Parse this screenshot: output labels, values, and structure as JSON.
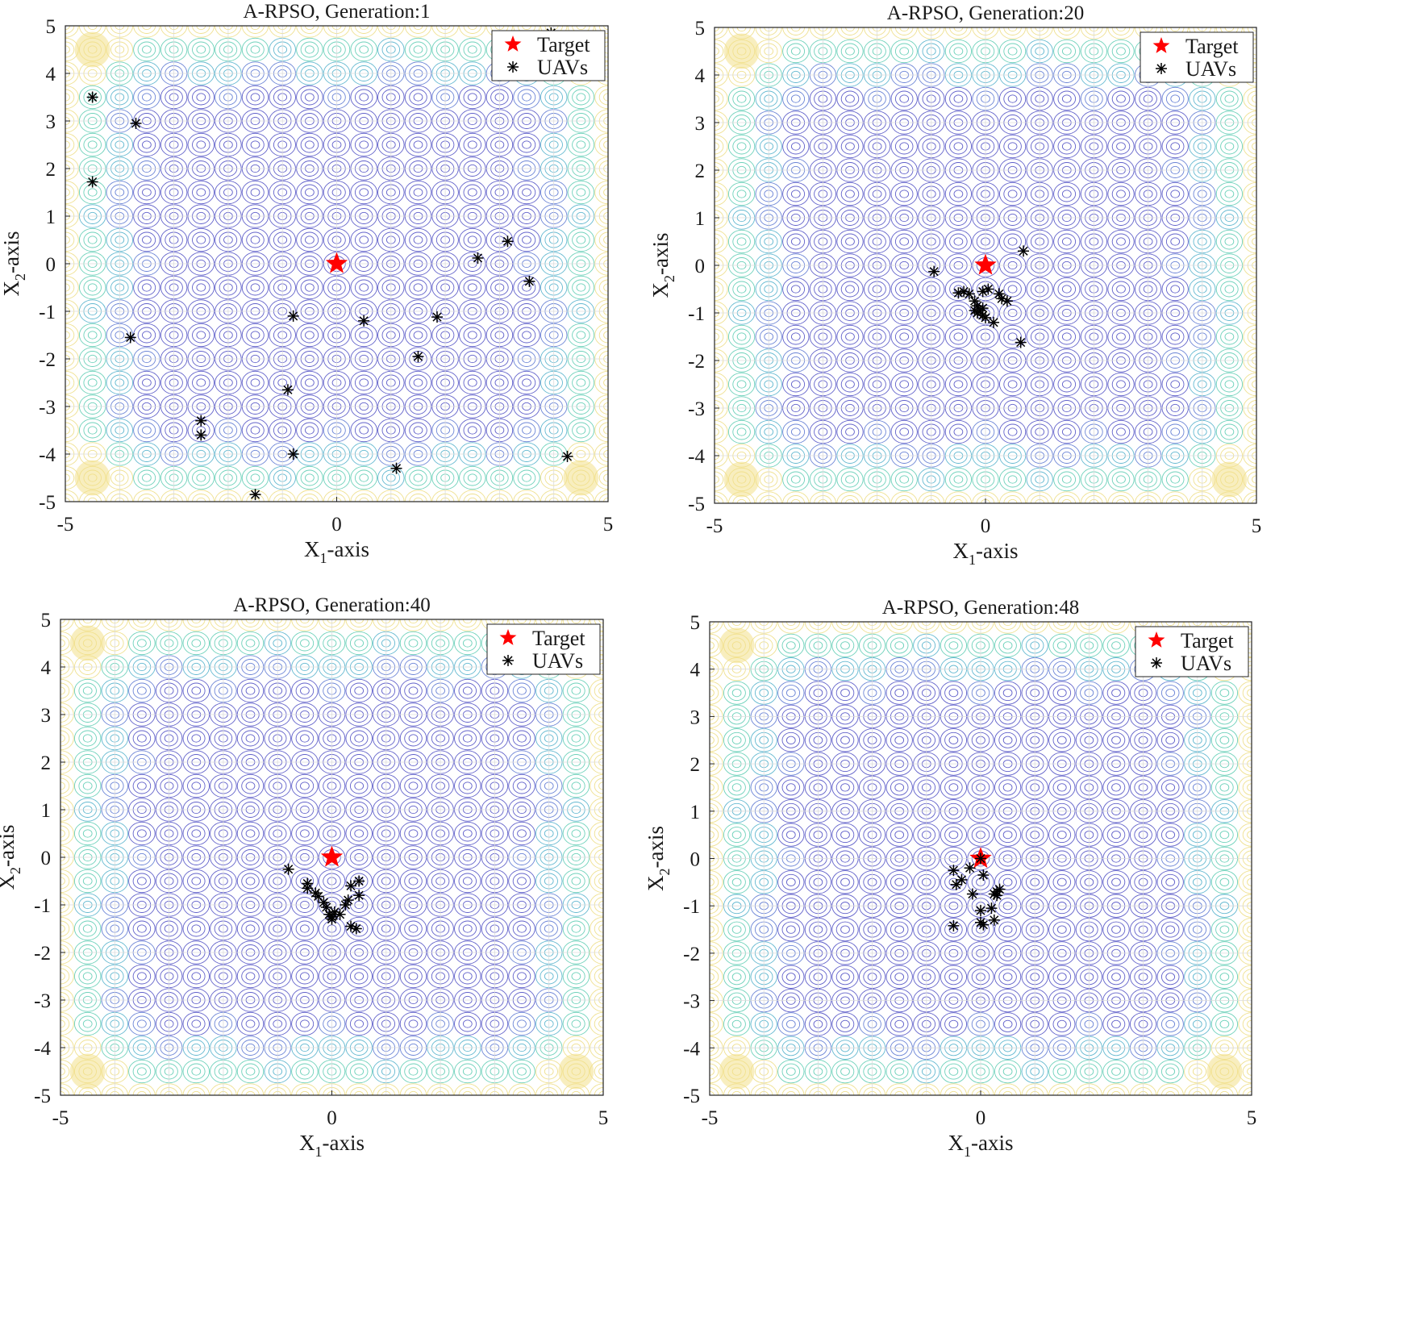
{
  "chart_data": [
    {
      "type": "scatter",
      "title": "A-RPSO, Generation:1",
      "xlabel_main": "X",
      "xlabel_sub": "1",
      "xlabel_rest": "-axis",
      "ylabel_main": "X",
      "ylabel_sub": "2",
      "ylabel_rest": "-axis",
      "xlim": [
        -5,
        5
      ],
      "ylim": [
        -5,
        5
      ],
      "xticks": [
        -5,
        0,
        5
      ],
      "yticks": [
        5,
        4,
        3,
        2,
        1,
        0,
        -1,
        -2,
        -3,
        -4,
        -5
      ],
      "grid": true,
      "legend_position": "top-right",
      "background": "contour",
      "legend": [
        {
          "label": "Target",
          "marker": "star",
          "color": "#ff0000"
        },
        {
          "label": "UAVs",
          "marker": "asterisk",
          "color": "#000000"
        }
      ],
      "target": [
        0,
        0
      ],
      "uavs": [
        [
          -4.5,
          3.5
        ],
        [
          -3.7,
          2.95
        ],
        [
          -4.5,
          1.72
        ],
        [
          -3.8,
          -1.55
        ],
        [
          -0.8,
          -1.1
        ],
        [
          0.5,
          -1.2
        ],
        [
          1.85,
          -1.12
        ],
        [
          2.6,
          0.12
        ],
        [
          3.15,
          0.47
        ],
        [
          3.55,
          -0.37
        ],
        [
          1.5,
          -1.95
        ],
        [
          -0.9,
          -2.65
        ],
        [
          -2.5,
          -3.3
        ],
        [
          -2.5,
          -3.6
        ],
        [
          -0.8,
          -4.0
        ],
        [
          1.1,
          -4.3
        ],
        [
          -1.5,
          -4.85
        ],
        [
          4.25,
          -4.05
        ],
        [
          3.95,
          4.85
        ]
      ]
    },
    {
      "type": "scatter",
      "title": "A-RPSO, Generation:20",
      "xlabel_main": "X",
      "xlabel_sub": "1",
      "xlabel_rest": "-axis",
      "ylabel_main": "X",
      "ylabel_sub": "2",
      "ylabel_rest": "-axis",
      "xlim": [
        -5,
        5
      ],
      "ylim": [
        -5,
        5
      ],
      "xticks": [
        -5,
        0,
        5
      ],
      "yticks": [
        5,
        4,
        3,
        2,
        1,
        0,
        -1,
        -2,
        -3,
        -4,
        -5
      ],
      "grid": true,
      "legend_position": "top-right",
      "background": "contour",
      "legend": [
        {
          "label": "Target",
          "marker": "star",
          "color": "#ff0000"
        },
        {
          "label": "UAVs",
          "marker": "asterisk",
          "color": "#000000"
        }
      ],
      "target": [
        0,
        0
      ],
      "uavs": [
        [
          -0.95,
          -0.13
        ],
        [
          0.7,
          0.3
        ],
        [
          -0.5,
          -0.58
        ],
        [
          -0.4,
          -0.55
        ],
        [
          -0.3,
          -0.6
        ],
        [
          -0.05,
          -0.55
        ],
        [
          0.05,
          -0.5
        ],
        [
          0.25,
          -0.6
        ],
        [
          0.3,
          -0.7
        ],
        [
          0.4,
          -0.75
        ],
        [
          -0.2,
          -0.75
        ],
        [
          -0.15,
          -0.85
        ],
        [
          -0.2,
          -0.95
        ],
        [
          -0.1,
          -0.95
        ],
        [
          -0.05,
          -0.9
        ],
        [
          -0.15,
          -1.0
        ],
        [
          -0.05,
          -1.05
        ],
        [
          0.0,
          -1.1
        ],
        [
          0.15,
          -1.2
        ],
        [
          0.65,
          -1.62
        ]
      ]
    },
    {
      "type": "scatter",
      "title": "A-RPSO, Generation:40",
      "xlabel_main": "X",
      "xlabel_sub": "1",
      "xlabel_rest": "-axis",
      "ylabel_main": "X",
      "ylabel_sub": "2",
      "ylabel_rest": "-axis",
      "xlim": [
        -5,
        5
      ],
      "ylim": [
        -5,
        5
      ],
      "xticks": [
        -5,
        0,
        5
      ],
      "yticks": [
        5,
        4,
        3,
        2,
        1,
        0,
        -1,
        -2,
        -3,
        -4,
        -5
      ],
      "grid": true,
      "legend_position": "top-right",
      "background": "contour",
      "legend": [
        {
          "label": "Target",
          "marker": "star",
          "color": "#ff0000"
        },
        {
          "label": "UAVs",
          "marker": "asterisk",
          "color": "#000000"
        }
      ],
      "target": [
        0,
        0
      ],
      "uavs": [
        [
          -0.8,
          -0.25
        ],
        [
          -0.45,
          -0.55
        ],
        [
          -0.45,
          -0.65
        ],
        [
          -0.3,
          -0.75
        ],
        [
          -0.25,
          -0.82
        ],
        [
          -0.15,
          -0.95
        ],
        [
          -0.1,
          -1.05
        ],
        [
          -0.05,
          -1.2
        ],
        [
          0.0,
          -1.25
        ],
        [
          0.0,
          -1.3
        ],
        [
          0.05,
          -1.15
        ],
        [
          0.15,
          -1.2
        ],
        [
          0.25,
          -1.0
        ],
        [
          0.3,
          -0.9
        ],
        [
          0.35,
          -0.6
        ],
        [
          0.5,
          -0.5
        ],
        [
          0.5,
          -0.8
        ],
        [
          0.35,
          -1.45
        ],
        [
          0.45,
          -1.5
        ]
      ]
    },
    {
      "type": "scatter",
      "title": "A-RPSO, Generation:48",
      "xlabel_main": "X",
      "xlabel_sub": "1",
      "xlabel_rest": "-axis",
      "ylabel_main": "X",
      "ylabel_sub": "2",
      "ylabel_rest": "-axis",
      "xlim": [
        -5,
        5
      ],
      "ylim": [
        -5,
        5
      ],
      "xticks": [
        -5,
        0,
        5
      ],
      "yticks": [
        5,
        4,
        3,
        2,
        1,
        0,
        -1,
        -2,
        -3,
        -4,
        -5
      ],
      "grid": true,
      "legend_position": "top-right",
      "background": "contour",
      "legend": [
        {
          "label": "Target",
          "marker": "star",
          "color": "#ff0000"
        },
        {
          "label": "UAVs",
          "marker": "asterisk",
          "color": "#000000"
        }
      ],
      "target": [
        0,
        0
      ],
      "uavs": [
        [
          0.0,
          0.0
        ],
        [
          -0.5,
          -0.25
        ],
        [
          -0.45,
          -0.55
        ],
        [
          -0.35,
          -0.45
        ],
        [
          -0.2,
          -0.2
        ],
        [
          -0.15,
          -0.75
        ],
        [
          0.05,
          -0.35
        ],
        [
          0.3,
          -0.7
        ],
        [
          0.25,
          -0.75
        ],
        [
          0.35,
          -0.65
        ],
        [
          0.3,
          -0.78
        ],
        [
          0.2,
          -1.05
        ],
        [
          0.25,
          -1.3
        ],
        [
          0.0,
          -1.1
        ],
        [
          0.0,
          -1.35
        ],
        [
          0.05,
          -1.4
        ],
        [
          -0.5,
          -1.42
        ]
      ]
    }
  ]
}
